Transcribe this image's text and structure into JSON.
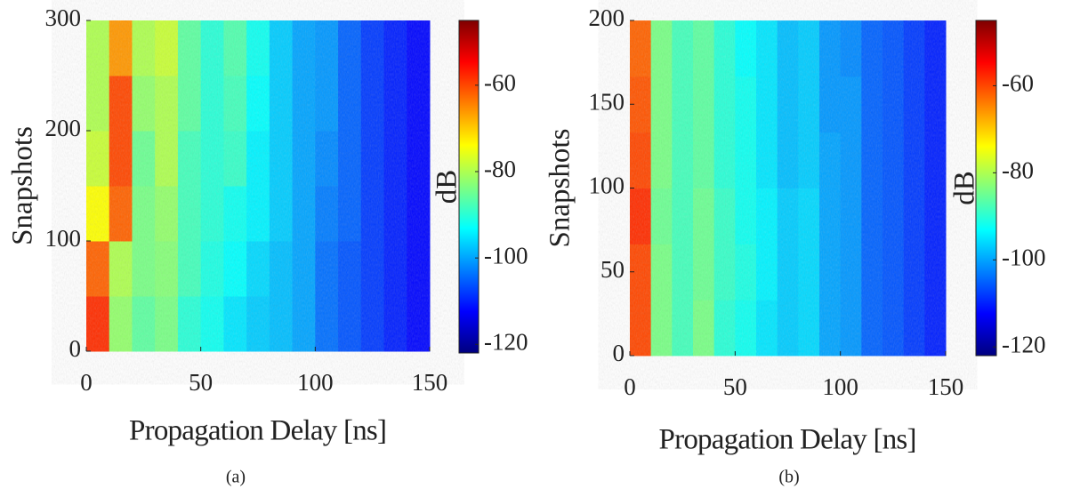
{
  "chart_data": [
    {
      "type": "heatmap",
      "caption": "(a)",
      "xlabel": "Propagation Delay [ns]",
      "ylabel": "Snapshots",
      "colorbar_label": "dB",
      "xlim": [
        0,
        150
      ],
      "ylim": [
        0,
        300
      ],
      "xticks": [
        0,
        50,
        100,
        150
      ],
      "yticks": [
        0,
        100,
        200,
        300
      ],
      "clim": [
        -122,
        -45
      ],
      "cticks": [
        -60,
        -80,
        -100,
        -120
      ],
      "colormap": "jet",
      "x": [
        5,
        15,
        25,
        35,
        45,
        55,
        65,
        75,
        85,
        95,
        105,
        115,
        125,
        135,
        145
      ],
      "y": [
        25,
        75,
        125,
        175,
        225,
        275
      ],
      "z": [
        [
          -58,
          -82,
          -86,
          -84,
          -90,
          -92,
          -95,
          -97,
          -98,
          -100,
          -104,
          -106,
          -108,
          -110,
          -112
        ],
        [
          -62,
          -80,
          -84,
          -83,
          -88,
          -91,
          -93,
          -96,
          -98,
          -100,
          -104,
          -106,
          -108,
          -110,
          -112
        ],
        [
          -74,
          -62,
          -84,
          -82,
          -88,
          -90,
          -92,
          -94,
          -97,
          -100,
          -103,
          -105,
          -108,
          -110,
          -112
        ],
        [
          -78,
          -60,
          -85,
          -80,
          -88,
          -90,
          -89,
          -94,
          -97,
          -100,
          -102,
          -105,
          -108,
          -110,
          -112
        ],
        [
          -80,
          -60,
          -82,
          -80,
          -86,
          -90,
          -88,
          -93,
          -97,
          -100,
          -101,
          -105,
          -108,
          -110,
          -112
        ],
        [
          -80,
          -66,
          -80,
          -78,
          -86,
          -90,
          -87,
          -92,
          -97,
          -100,
          -101,
          -105,
          -108,
          -110,
          -112
        ]
      ]
    },
    {
      "type": "heatmap",
      "caption": "(b)",
      "xlabel": "Propagation Delay [ns]",
      "ylabel": "Snapshots",
      "colorbar_label": "dB",
      "xlim": [
        0,
        150
      ],
      "ylim": [
        0,
        200
      ],
      "xticks": [
        0,
        50,
        100,
        150
      ],
      "yticks": [
        0,
        50,
        100,
        150,
        200
      ],
      "clim": [
        -122,
        -45
      ],
      "cticks": [
        -60,
        -80,
        -100,
        -120
      ],
      "colormap": "jet",
      "x": [
        5,
        15,
        25,
        35,
        45,
        55,
        65,
        75,
        85,
        95,
        105,
        115,
        125,
        135,
        145
      ],
      "y": [
        16.7,
        50,
        83.3,
        116.7,
        150,
        183.3
      ],
      "z": [
        [
          -60,
          -84,
          -88,
          -84,
          -90,
          -92,
          -95,
          -97,
          -96,
          -100,
          -101,
          -105,
          -106,
          -108,
          -110
        ],
        [
          -60,
          -84,
          -88,
          -85,
          -89,
          -91,
          -94,
          -97,
          -96,
          -100,
          -101,
          -105,
          -106,
          -108,
          -110
        ],
        [
          -58,
          -85,
          -88,
          -85,
          -89,
          -92,
          -94,
          -97,
          -96,
          -100,
          -101,
          -105,
          -106,
          -108,
          -110
        ],
        [
          -60,
          -84,
          -88,
          -86,
          -90,
          -92,
          -95,
          -98,
          -97,
          -100,
          -101,
          -105,
          -106,
          -108,
          -110
        ],
        [
          -61,
          -84,
          -88,
          -86,
          -90,
          -92,
          -95,
          -98,
          -97,
          -101,
          -101,
          -105,
          -106,
          -108,
          -110
        ],
        [
          -62,
          -84,
          -88,
          -86,
          -90,
          -93,
          -95,
          -98,
          -97,
          -101,
          -102,
          -105,
          -106,
          -108,
          -110
        ]
      ]
    }
  ]
}
